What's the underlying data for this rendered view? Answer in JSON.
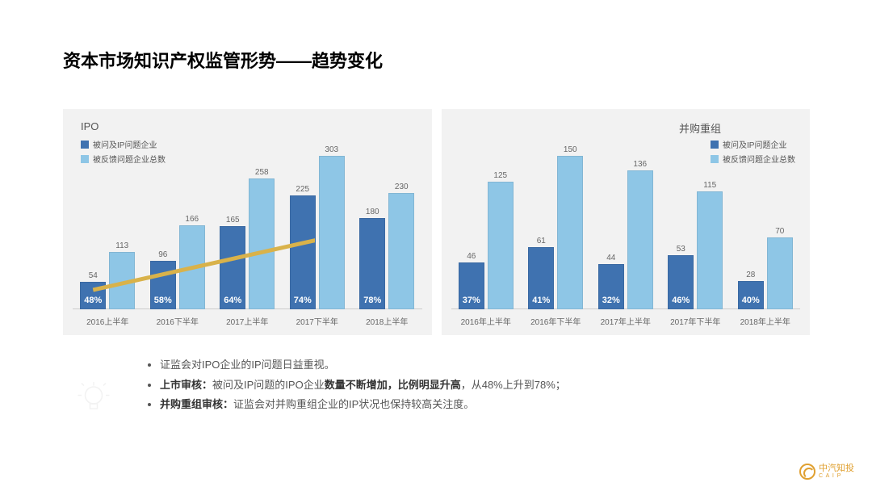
{
  "title": "资本市场知识产权监管形势——趋势变化",
  "colors": {
    "series1": "#3f72b0",
    "series2": "#8ec6e6",
    "panel_bg": "#f2f2f2",
    "arrow": "#d9b24a",
    "text": "#555555",
    "logo": "#e0a030"
  },
  "legend": {
    "s1": "被问及IP问题企业",
    "s2": "被反馈问题企业总数"
  },
  "chart_left": {
    "title": "IPO",
    "ymax": 303,
    "categories": [
      "2016上半年",
      "2016下半年",
      "2017上半年",
      "2017下半年",
      "2018上半年"
    ],
    "series1_values": [
      54,
      96,
      165,
      225,
      180
    ],
    "series2_values": [
      113,
      166,
      258,
      303,
      230
    ],
    "series1_pct": [
      "48%",
      "58%",
      "64%",
      "74%",
      "78%"
    ],
    "has_arrow": true
  },
  "chart_right": {
    "title": "并购重组",
    "ymax": 150,
    "categories": [
      "2016年上半年",
      "2016年下半年",
      "2017年上半年",
      "2017年下半年",
      "2018年上半年"
    ],
    "series1_values": [
      46,
      61,
      44,
      53,
      28
    ],
    "series2_values": [
      125,
      150,
      136,
      115,
      70
    ],
    "series1_pct": [
      "37%",
      "41%",
      "32%",
      "46%",
      "40%"
    ],
    "has_arrow": false
  },
  "bullets": {
    "b1": "证监会对IPO企业的IP问题日益重视。",
    "b2_bold1": "上市审核：",
    "b2_text1": "被问及IP问题的IPO企业",
    "b2_bold2": "数量不断增加，比例明显升高",
    "b2_text2": "，从48%上升到78%；",
    "b3_bold": "并购重组审核：",
    "b3_text": "证监会对并购重组企业的IP状况也保持较高关注度。"
  },
  "logo": {
    "name": "中汽知投",
    "sub": "C A I P"
  }
}
